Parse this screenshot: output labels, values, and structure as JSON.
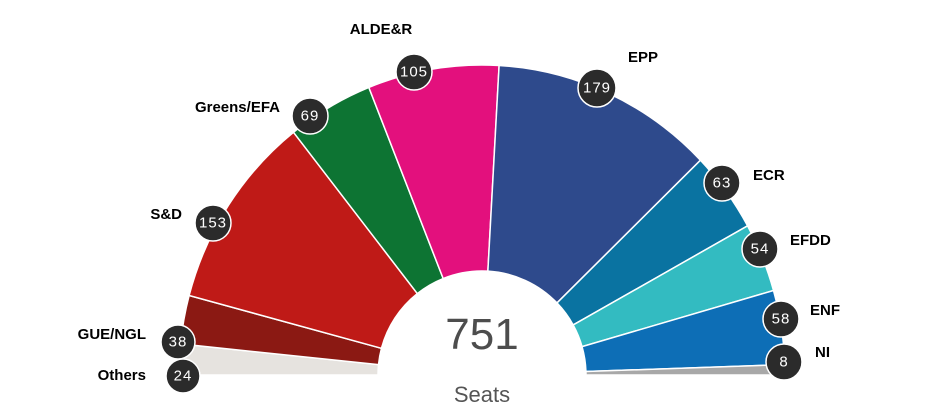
{
  "chart_data": {
    "type": "pie",
    "subtype": "semicircle-parliament",
    "title": "",
    "total": 751,
    "total_label": "Seats",
    "categories": [
      "Others",
      "GUE/NGL",
      "S&D",
      "Greens/EFA",
      "ALDE&R",
      "EPP",
      "ECR",
      "EFDD",
      "ENF",
      "NI"
    ],
    "values": [
      24,
      38,
      153,
      69,
      105,
      179,
      63,
      54,
      58,
      8
    ],
    "colors": [
      "#E6E3DF",
      "#8B1913",
      "#BF1A17",
      "#0D7433",
      "#E3107D",
      "#2E4A8C",
      "#0A73A1",
      "#33BBC1",
      "#0D6EB6",
      "#A8A8A8"
    ],
    "parties": [
      {
        "name": "Others",
        "seats": 24,
        "color": "#E6E3DF"
      },
      {
        "name": "GUE/NGL",
        "seats": 38,
        "color": "#8B1913"
      },
      {
        "name": "S&D",
        "seats": 153,
        "color": "#BF1A17"
      },
      {
        "name": "Greens/EFA",
        "seats": 69,
        "color": "#0D7433"
      },
      {
        "name": "ALDE&R",
        "seats": 105,
        "color": "#E3107D"
      },
      {
        "name": "EPP",
        "seats": 179,
        "color": "#2E4A8C"
      },
      {
        "name": "ECR",
        "seats": 63,
        "color": "#0A73A1"
      },
      {
        "name": "EFDD",
        "seats": 54,
        "color": "#33BBC1"
      },
      {
        "name": "ENF",
        "seats": 58,
        "color": "#0D6EB6"
      },
      {
        "name": "NI",
        "seats": 8,
        "color": "#A8A8A8"
      }
    ],
    "legend_position": "outside labels per slice"
  },
  "center": {
    "total": "751",
    "label": "Seats"
  },
  "labels": {
    "others": {
      "name": "Others",
      "seats": "24"
    },
    "gue": {
      "name": "GUE/NGL",
      "seats": "38"
    },
    "sd": {
      "name": "S&D",
      "seats": "153"
    },
    "greens": {
      "name": "Greens/EFA",
      "seats": "69"
    },
    "alde": {
      "name": "ALDE&R",
      "seats": "105"
    },
    "epp": {
      "name": "EPP",
      "seats": "179"
    },
    "ecr": {
      "name": "ECR",
      "seats": "63"
    },
    "efdd": {
      "name": "EFDD",
      "seats": "54"
    },
    "enf": {
      "name": "ENF",
      "seats": "58"
    },
    "ni": {
      "name": "NI",
      "seats": "8"
    }
  }
}
